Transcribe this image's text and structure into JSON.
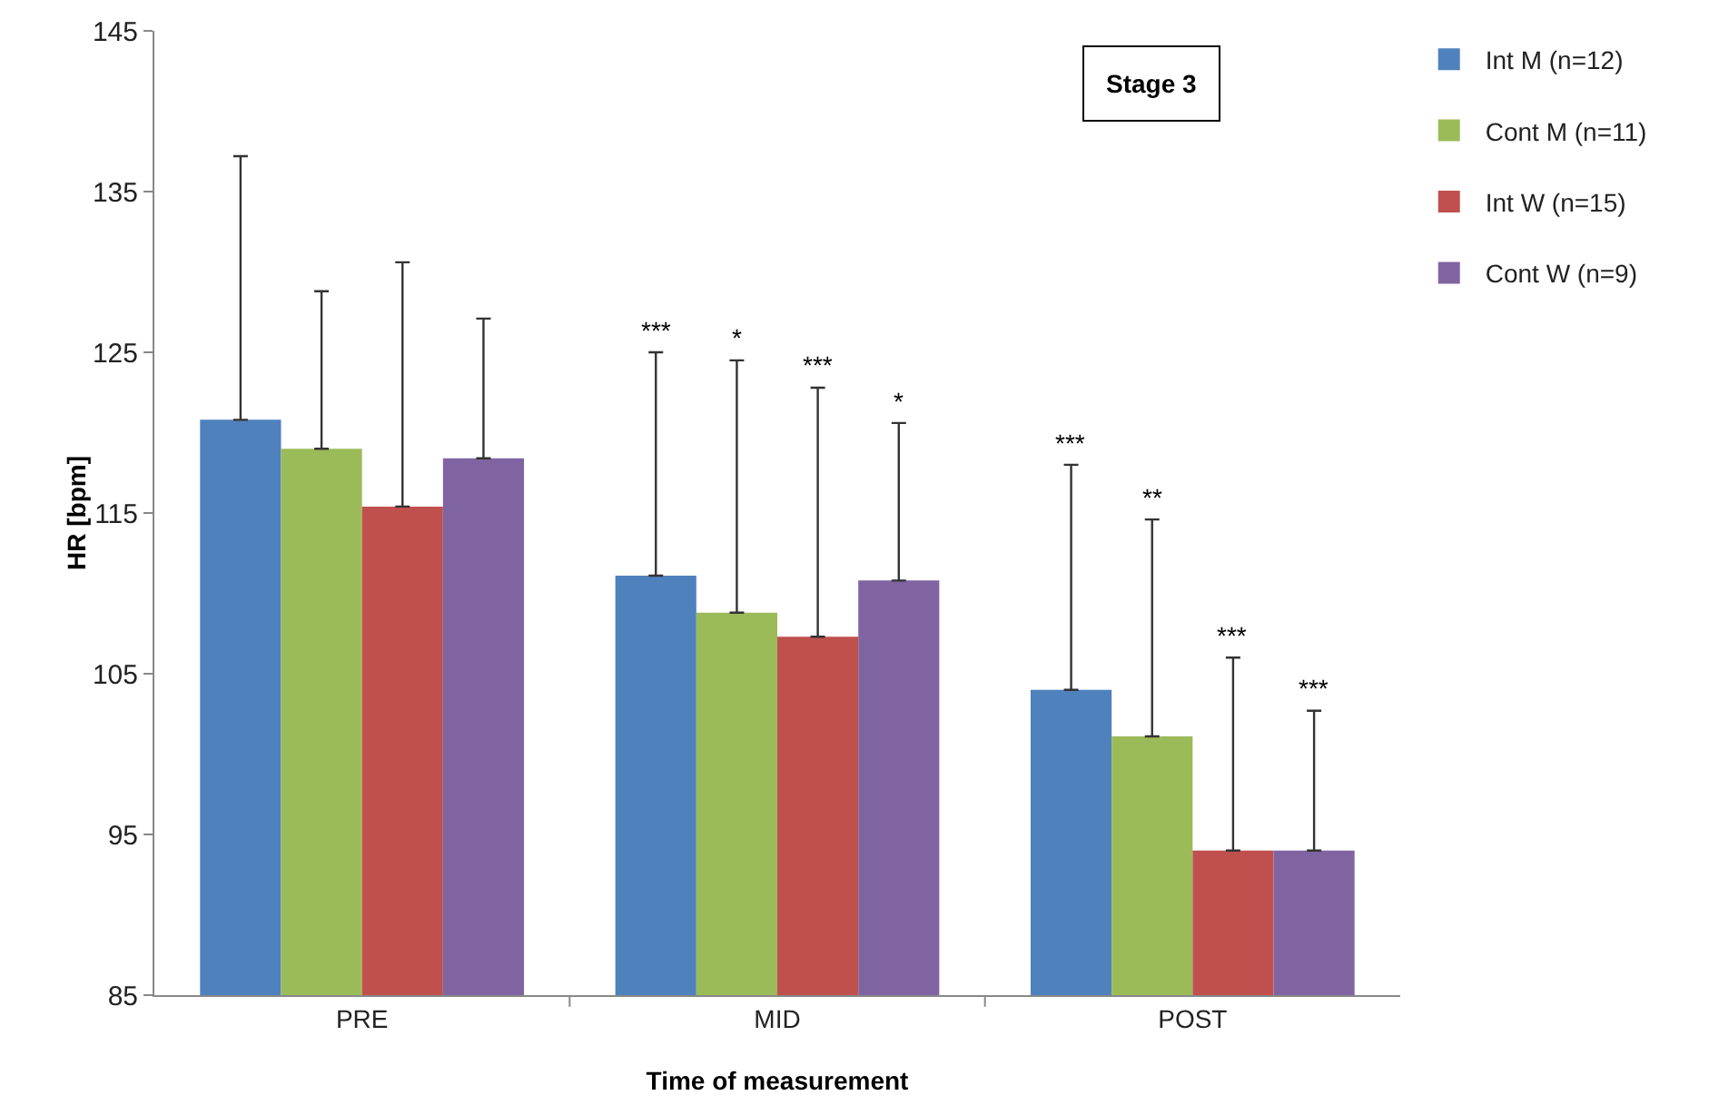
{
  "chart_data": {
    "type": "bar",
    "xlabel": "Time of measurement",
    "ylabel": "HR [bpm]",
    "categories": [
      "PRE",
      "MID",
      "POST"
    ],
    "series": [
      {
        "name": "Int M (n=12)",
        "color": "#4f81bd",
        "values": [
          120.8,
          111.1,
          104.0
        ],
        "errors": [
          [
            120.8,
            137.2
          ],
          [
            111.1,
            125.0
          ],
          [
            104.0,
            118.0
          ]
        ]
      },
      {
        "name": "Cont M (n=11)",
        "color": "#9bbb59",
        "values": [
          119.0,
          108.8,
          101.1
        ],
        "errors": [
          [
            119.0,
            128.8
          ],
          [
            108.8,
            124.5
          ],
          [
            101.1,
            114.6
          ]
        ]
      },
      {
        "name": "Int W (n=15)",
        "color": "#c0504d",
        "values": [
          115.4,
          107.3,
          94.0
        ],
        "errors": [
          [
            115.4,
            130.6
          ],
          [
            107.3,
            122.8
          ],
          [
            94.0,
            106.0
          ]
        ]
      },
      {
        "name": "Cont W (n=9)",
        "color": "#8064a2",
        "values": [
          118.4,
          110.8,
          94.0
        ],
        "errors": [
          [
            118.4,
            127.1
          ],
          [
            110.8,
            120.6
          ],
          [
            94.0,
            102.7
          ]
        ]
      }
    ],
    "ylim": [
      85,
      145
    ],
    "yticks": [
      85,
      95,
      105,
      115,
      125,
      135,
      145
    ],
    "grid": false,
    "legend": "top right",
    "annotations": [
      "Stage 3",
      "***",
      "*",
      "***",
      "*",
      "***",
      "**",
      "***",
      "***"
    ]
  }
}
